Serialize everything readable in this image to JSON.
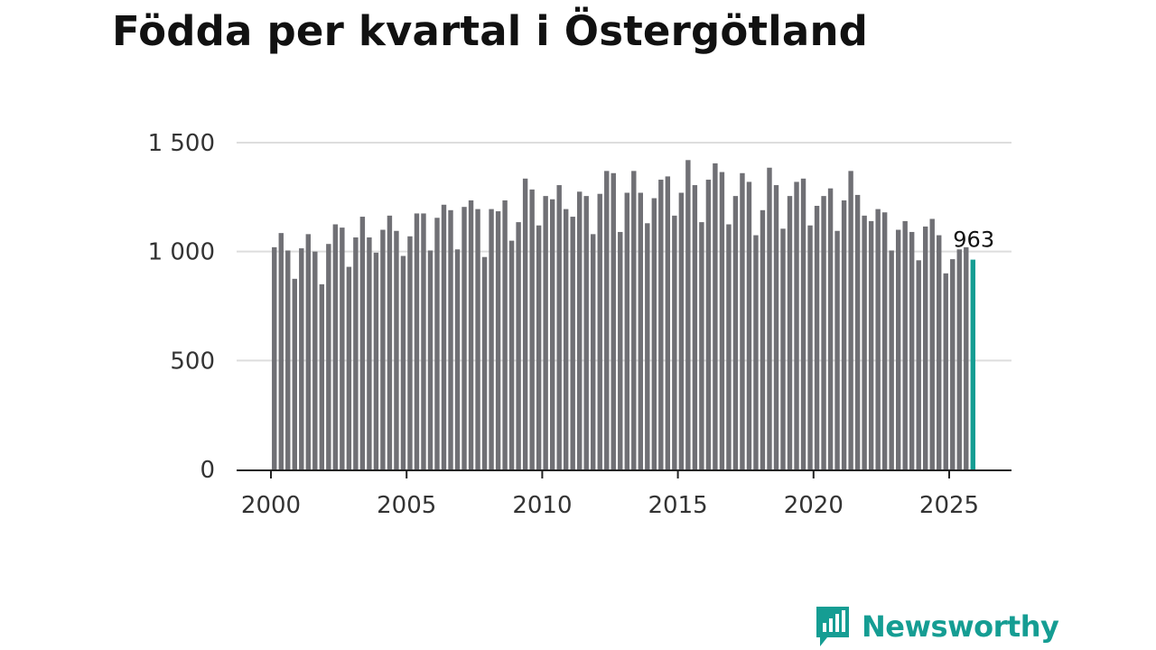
{
  "chart_data": {
    "type": "bar",
    "title": "Födda per kvartal i Östergötland",
    "xlabel": "",
    "ylabel": "",
    "ylim": [
      0,
      1500
    ],
    "yticks": [
      {
        "value": 0,
        "label": "0"
      },
      {
        "value": 500,
        "label": "500"
      },
      {
        "value": 1000,
        "label": "1 000"
      },
      {
        "value": 1500,
        "label": "1 500"
      }
    ],
    "xticks": [
      {
        "value": 2000,
        "label": "2000"
      },
      {
        "value": 2005,
        "label": "2005"
      },
      {
        "value": 2010,
        "label": "2010"
      },
      {
        "value": 2015,
        "label": "2015"
      },
      {
        "value": 2020,
        "label": "2020"
      },
      {
        "value": 2025,
        "label": "2025"
      }
    ],
    "grid": true,
    "bar_color": "#707075",
    "highlight_color": "#159d93",
    "x_start_quarter": "2000-Q1",
    "values": [
      1020,
      1085,
      1005,
      875,
      1015,
      1080,
      1000,
      850,
      1035,
      1125,
      1110,
      930,
      1065,
      1160,
      1065,
      995,
      1100,
      1165,
      1095,
      980,
      1070,
      1175,
      1175,
      1005,
      1155,
      1215,
      1190,
      1010,
      1205,
      1235,
      1195,
      975,
      1195,
      1185,
      1235,
      1050,
      1135,
      1335,
      1285,
      1120,
      1255,
      1240,
      1305,
      1195,
      1160,
      1275,
      1255,
      1080,
      1265,
      1370,
      1360,
      1090,
      1270,
      1370,
      1270,
      1130,
      1245,
      1330,
      1345,
      1165,
      1270,
      1420,
      1305,
      1135,
      1330,
      1405,
      1365,
      1125,
      1255,
      1360,
      1320,
      1075,
      1190,
      1385,
      1305,
      1105,
      1255,
      1320,
      1335,
      1120,
      1210,
      1255,
      1290,
      1095,
      1235,
      1370,
      1260,
      1165,
      1140,
      1195,
      1180,
      1005,
      1100,
      1140,
      1090,
      960,
      1115,
      1150,
      1075,
      900,
      965,
      1010,
      1020,
      963
    ],
    "highlight_label": "963"
  },
  "brand": {
    "name": "Newsworthy",
    "color": "#159d93",
    "icon": "newsworthy-logo-icon"
  }
}
